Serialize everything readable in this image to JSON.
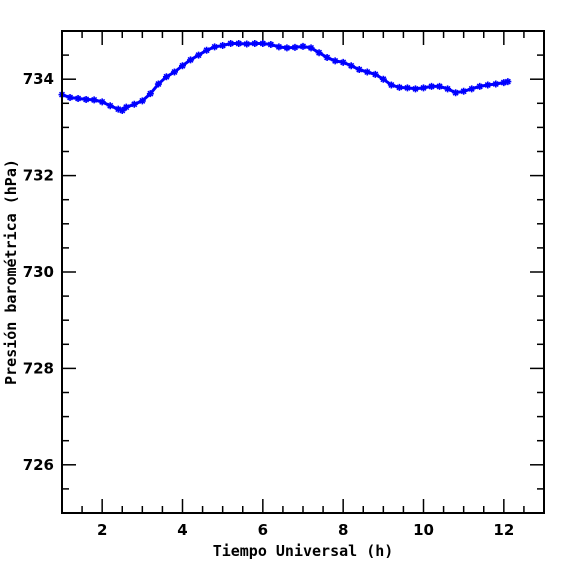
{
  "chart_data": {
    "type": "line",
    "title": "",
    "xlabel": "Tiempo Universal (h)",
    "ylabel": "Presión barométrica (hPa)",
    "xlim": [
      1,
      13
    ],
    "ylim": [
      725,
      735
    ],
    "x_ticks": [
      2,
      4,
      6,
      8,
      10,
      12
    ],
    "y_ticks": [
      726,
      728,
      730,
      732,
      734
    ],
    "grid": false,
    "legend": "none",
    "marker": "star",
    "series": [
      {
        "color": "#0000ff",
        "x": [
          1.0,
          1.2,
          1.4,
          1.6,
          1.8,
          2.0,
          2.2,
          2.4,
          2.5,
          2.6,
          2.8,
          3.0,
          3.2,
          3.4,
          3.6,
          3.8,
          4.0,
          4.2,
          4.4,
          4.6,
          4.8,
          5.0,
          5.2,
          5.4,
          5.6,
          5.8,
          6.0,
          6.2,
          6.4,
          6.6,
          6.8,
          7.0,
          7.2,
          7.4,
          7.6,
          7.8,
          8.0,
          8.2,
          8.4,
          8.6,
          8.8,
          9.0,
          9.2,
          9.4,
          9.6,
          9.8,
          10.0,
          10.2,
          10.4,
          10.6,
          10.8,
          11.0,
          11.2,
          11.4,
          11.6,
          11.8,
          12.0,
          12.1
        ],
        "y": [
          733.68,
          733.62,
          733.6,
          733.58,
          733.57,
          733.53,
          733.45,
          733.38,
          733.35,
          733.42,
          733.48,
          733.55,
          733.7,
          733.9,
          734.05,
          734.15,
          734.28,
          734.4,
          734.5,
          734.6,
          734.67,
          734.7,
          734.74,
          734.74,
          734.73,
          734.74,
          734.74,
          734.72,
          734.67,
          734.65,
          734.66,
          734.68,
          734.65,
          734.55,
          734.45,
          734.38,
          734.35,
          734.28,
          734.2,
          734.15,
          734.1,
          734.0,
          733.88,
          733.83,
          733.82,
          733.8,
          733.82,
          733.85,
          733.85,
          733.8,
          733.72,
          733.75,
          733.8,
          733.85,
          733.88,
          733.9,
          733.93,
          733.95
        ]
      }
    ]
  }
}
